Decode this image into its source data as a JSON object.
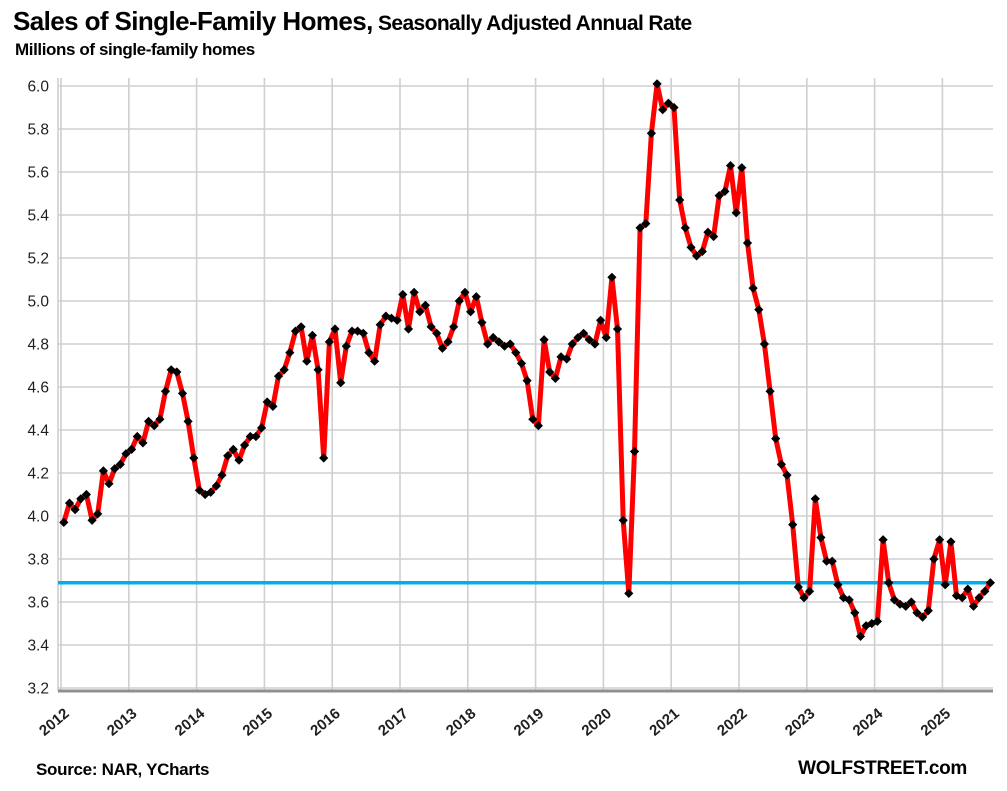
{
  "header": {
    "title_main": "Sales of Single-Family Homes,",
    "title_rest": " Seasonally Adjusted Annual Rate",
    "subtitle": "Millions of single-family homes"
  },
  "footer": {
    "source": "Source: NAR, YCharts",
    "site": "WOLFSTREET.com"
  },
  "colors": {
    "series_red": "#fe0000",
    "marker_black": "#000000",
    "reference_blue": "#00adee",
    "gridline_gray": "#cfcfcf",
    "axis_gray": "#8f8f8f",
    "tick_text": "#1f1f1f"
  },
  "chart_data": {
    "type": "line",
    "title": "Sales of Single-Family Homes, Seasonally Adjusted Annual Rate",
    "ylabel": "Millions of single-family homes",
    "xlabel": "",
    "x_range": {
      "start": "2012-01",
      "end": "2025-09",
      "frequency": "monthly"
    },
    "x_tick_labels": [
      "2012",
      "2013",
      "2014",
      "2015",
      "2016",
      "2017",
      "2018",
      "2019",
      "2020",
      "2021",
      "2022",
      "2023",
      "2024",
      "2025"
    ],
    "y_tick_labels": [
      "3.2",
      "3.4",
      "3.6",
      "3.8",
      "4.0",
      "4.2",
      "4.4",
      "4.6",
      "4.8",
      "5.0",
      "5.2",
      "5.4",
      "5.6",
      "5.8",
      "6.0"
    ],
    "ylim": [
      3.2,
      6.05
    ],
    "grid": true,
    "legend": "none",
    "reference_line": {
      "value": 3.69,
      "color": "#00adee",
      "meaning": "latest reading level"
    },
    "series": [
      {
        "name": "Single-family home sales, SAAR (millions)",
        "color": "#fe0000",
        "marker": "black-diamond",
        "values": [
          3.97,
          4.06,
          4.03,
          4.08,
          4.1,
          3.98,
          4.01,
          4.21,
          4.15,
          4.22,
          4.24,
          4.29,
          4.31,
          4.37,
          4.34,
          4.44,
          4.42,
          4.45,
          4.58,
          4.68,
          4.67,
          4.57,
          4.44,
          4.27,
          4.12,
          4.1,
          4.11,
          4.14,
          4.19,
          4.28,
          4.31,
          4.26,
          4.33,
          4.37,
          4.37,
          4.41,
          4.53,
          4.51,
          4.65,
          4.68,
          4.76,
          4.86,
          4.88,
          4.72,
          4.84,
          4.68,
          4.27,
          4.81,
          4.87,
          4.62,
          4.79,
          4.86,
          4.86,
          4.85,
          4.76,
          4.72,
          4.89,
          4.93,
          4.92,
          4.91,
          5.03,
          4.87,
          5.04,
          4.95,
          4.98,
          4.88,
          4.85,
          4.78,
          4.81,
          4.88,
          5.0,
          5.04,
          4.95,
          5.02,
          4.9,
          4.8,
          4.83,
          4.81,
          4.79,
          4.8,
          4.76,
          4.71,
          4.63,
          4.45,
          4.42,
          4.82,
          4.67,
          4.64,
          4.74,
          4.73,
          4.8,
          4.83,
          4.85,
          4.82,
          4.8,
          4.91,
          4.83,
          5.11,
          4.87,
          3.98,
          3.64,
          4.3,
          5.34,
          5.36,
          5.78,
          6.01,
          5.89,
          5.92,
          5.9,
          5.47,
          5.34,
          5.25,
          5.21,
          5.23,
          5.32,
          5.3,
          5.49,
          5.51,
          5.63,
          5.41,
          5.62,
          5.27,
          5.06,
          4.96,
          4.8,
          4.58,
          4.36,
          4.24,
          4.19,
          3.96,
          3.67,
          3.62,
          3.65,
          4.08,
          3.9,
          3.79,
          3.79,
          3.68,
          3.62,
          3.61,
          3.55,
          3.44,
          3.49,
          3.5,
          3.51,
          3.89,
          3.69,
          3.61,
          3.59,
          3.58,
          3.6,
          3.55,
          3.53,
          3.56,
          3.8,
          3.89,
          3.68,
          3.88,
          3.63,
          3.62,
          3.66,
          3.58,
          3.62,
          3.65,
          3.69
        ]
      }
    ]
  }
}
